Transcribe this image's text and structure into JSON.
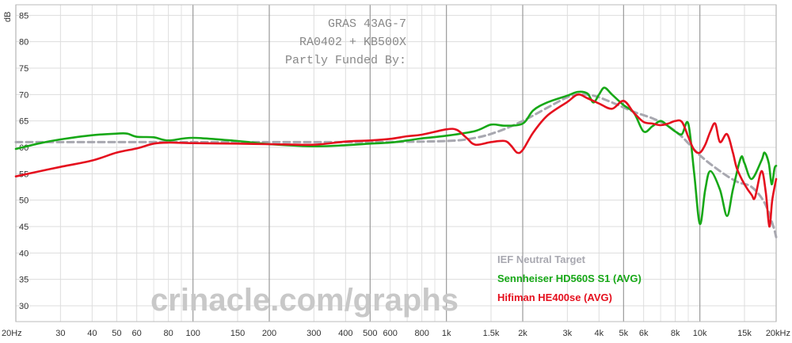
{
  "chart_data": {
    "type": "line",
    "title_lines": [
      "GRAS 43AG-7",
      "RA0402 + KB500X",
      "Partly Funded By:"
    ],
    "watermark": "crinacle.com/graphs",
    "ylabel": "dB",
    "ylim": [
      27,
      87
    ],
    "xlim": [
      20,
      20000
    ],
    "x_scale": "log",
    "grid": true,
    "legend_position": "bottom-right",
    "y_ticks": [
      {
        "value": 30,
        "label": "30"
      },
      {
        "value": 35,
        "label": "35"
      },
      {
        "value": 40,
        "label": "40"
      },
      {
        "value": 45,
        "label": "45"
      },
      {
        "value": 50,
        "label": "50"
      },
      {
        "value": 55,
        "label": "55"
      },
      {
        "value": 60,
        "label": "60"
      },
      {
        "value": 65,
        "label": "65"
      },
      {
        "value": 70,
        "label": "70"
      },
      {
        "value": 75,
        "label": "75"
      },
      {
        "value": 80,
        "label": "80"
      },
      {
        "value": 85,
        "label": "85"
      }
    ],
    "x_ticks": [
      {
        "value": 20,
        "label": "20Hz",
        "major": true
      },
      {
        "value": 30,
        "label": "30"
      },
      {
        "value": 40,
        "label": "40"
      },
      {
        "value": 50,
        "label": "50"
      },
      {
        "value": 60,
        "label": "60"
      },
      {
        "value": 80,
        "label": "80"
      },
      {
        "value": 100,
        "label": "100",
        "major": true
      },
      {
        "value": 150,
        "label": "150"
      },
      {
        "value": 200,
        "label": "200",
        "major": true
      },
      {
        "value": 300,
        "label": "300"
      },
      {
        "value": 400,
        "label": "400"
      },
      {
        "value": 500,
        "label": "500",
        "major": true
      },
      {
        "value": 600,
        "label": "600"
      },
      {
        "value": 800,
        "label": "800"
      },
      {
        "value": 1000,
        "label": "1k",
        "major": true
      },
      {
        "value": 1500,
        "label": "1.5k"
      },
      {
        "value": 2000,
        "label": "2k",
        "major": true
      },
      {
        "value": 3000,
        "label": "3k"
      },
      {
        "value": 4000,
        "label": "4k"
      },
      {
        "value": 5000,
        "label": "5k",
        "major": true
      },
      {
        "value": 6000,
        "label": "6k"
      },
      {
        "value": 8000,
        "label": "8k"
      },
      {
        "value": 10000,
        "label": "10k",
        "major": true
      },
      {
        "value": 15000,
        "label": "15k"
      },
      {
        "value": 20000,
        "label": "20kHz",
        "major": true
      }
    ],
    "minor_grid_x": [
      70,
      90,
      700,
      900,
      7000,
      9000
    ],
    "series": [
      {
        "name": "IEF Neutral Target",
        "color": "#a8a8b0",
        "dashed": true,
        "points": [
          [
            20,
            61.0
          ],
          [
            40,
            61.0
          ],
          [
            100,
            61.0
          ],
          [
            200,
            61.0
          ],
          [
            500,
            61.0
          ],
          [
            1000,
            61.2
          ],
          [
            1300,
            61.8
          ],
          [
            1600,
            63.0
          ],
          [
            2000,
            65.0
          ],
          [
            2500,
            67.5
          ],
          [
            3000,
            69.5
          ],
          [
            3300,
            70.0
          ],
          [
            3800,
            69.8
          ],
          [
            4500,
            68.5
          ],
          [
            5500,
            66.7
          ],
          [
            6500,
            65.5
          ],
          [
            7500,
            64.0
          ],
          [
            8500,
            62.0
          ],
          [
            10000,
            58.5
          ],
          [
            12000,
            55.5
          ],
          [
            14000,
            53.5
          ],
          [
            16000,
            52.5
          ],
          [
            18000,
            49.5
          ],
          [
            19500,
            45.0
          ],
          [
            20000,
            43.0
          ]
        ]
      },
      {
        "name": "Sennheiser HD560S S1 (AVG)",
        "color": "#17a817",
        "dashed": false,
        "points": [
          [
            20,
            59.7
          ],
          [
            25,
            60.8
          ],
          [
            30,
            61.5
          ],
          [
            40,
            62.3
          ],
          [
            50,
            62.6
          ],
          [
            55,
            62.6
          ],
          [
            60,
            62.0
          ],
          [
            70,
            61.9
          ],
          [
            80,
            61.3
          ],
          [
            100,
            61.8
          ],
          [
            150,
            61.2
          ],
          [
            200,
            60.6
          ],
          [
            300,
            60.2
          ],
          [
            400,
            60.4
          ],
          [
            500,
            60.7
          ],
          [
            600,
            60.9
          ],
          [
            700,
            61.3
          ],
          [
            800,
            61.7
          ],
          [
            1000,
            62.2
          ],
          [
            1300,
            63.1
          ],
          [
            1500,
            64.3
          ],
          [
            1700,
            64.1
          ],
          [
            2000,
            64.5
          ],
          [
            2200,
            67.0
          ],
          [
            2500,
            68.5
          ],
          [
            3000,
            69.8
          ],
          [
            3300,
            70.5
          ],
          [
            3600,
            70.2
          ],
          [
            3800,
            68.5
          ],
          [
            4000,
            70.0
          ],
          [
            4200,
            71.3
          ],
          [
            4500,
            70.0
          ],
          [
            5000,
            68.0
          ],
          [
            5500,
            66.5
          ],
          [
            6000,
            63.0
          ],
          [
            6500,
            64.0
          ],
          [
            7000,
            65.0
          ],
          [
            7500,
            64.0
          ],
          [
            8000,
            63.0
          ],
          [
            8500,
            62.5
          ],
          [
            9000,
            64.5
          ],
          [
            9500,
            55.0
          ],
          [
            10000,
            45.5
          ],
          [
            10500,
            52.0
          ],
          [
            11000,
            55.5
          ],
          [
            12000,
            52.0
          ],
          [
            12800,
            47.0
          ],
          [
            13500,
            52.0
          ],
          [
            14500,
            58.0
          ],
          [
            15000,
            57.0
          ],
          [
            16000,
            54.0
          ],
          [
            17500,
            57.5
          ],
          [
            18000,
            59.0
          ],
          [
            18700,
            57.0
          ],
          [
            19200,
            53.0
          ],
          [
            19700,
            56.0
          ],
          [
            20000,
            56.5
          ]
        ]
      },
      {
        "name": "Hifiman HE400se (AVG)",
        "color": "#e5101e",
        "dashed": false,
        "points": [
          [
            20,
            54.5
          ],
          [
            25,
            55.5
          ],
          [
            30,
            56.3
          ],
          [
            40,
            57.5
          ],
          [
            50,
            59.0
          ],
          [
            60,
            59.8
          ],
          [
            70,
            60.7
          ],
          [
            80,
            60.9
          ],
          [
            100,
            60.8
          ],
          [
            150,
            60.7
          ],
          [
            200,
            60.6
          ],
          [
            300,
            60.5
          ],
          [
            400,
            61.1
          ],
          [
            500,
            61.3
          ],
          [
            600,
            61.6
          ],
          [
            700,
            62.1
          ],
          [
            800,
            62.4
          ],
          [
            1000,
            63.4
          ],
          [
            1100,
            63.3
          ],
          [
            1200,
            61.8
          ],
          [
            1300,
            60.5
          ],
          [
            1500,
            61.0
          ],
          [
            1700,
            61.2
          ],
          [
            1800,
            60.3
          ],
          [
            1900,
            59.0
          ],
          [
            2000,
            59.5
          ],
          [
            2200,
            62.8
          ],
          [
            2500,
            66.0
          ],
          [
            3000,
            68.6
          ],
          [
            3300,
            70.0
          ],
          [
            3600,
            69.3
          ],
          [
            4000,
            68.3
          ],
          [
            4500,
            67.3
          ],
          [
            5000,
            68.8
          ],
          [
            5500,
            66.5
          ],
          [
            6000,
            64.8
          ],
          [
            6500,
            64.5
          ],
          [
            7000,
            64.2
          ],
          [
            7500,
            64.5
          ],
          [
            8000,
            65.0
          ],
          [
            8500,
            64.8
          ],
          [
            9000,
            62.0
          ],
          [
            9500,
            59.5
          ],
          [
            10000,
            59.0
          ],
          [
            10500,
            60.5
          ],
          [
            11000,
            63.0
          ],
          [
            11500,
            64.5
          ],
          [
            12000,
            61.0
          ],
          [
            12800,
            62.5
          ],
          [
            13500,
            59.0
          ],
          [
            14000,
            56.0
          ],
          [
            15000,
            53.0
          ],
          [
            16000,
            51.0
          ],
          [
            16500,
            50.5
          ],
          [
            17500,
            55.5
          ],
          [
            18200,
            51.5
          ],
          [
            18800,
            45.0
          ],
          [
            19300,
            50.0
          ],
          [
            20000,
            54.0
          ]
        ]
      }
    ]
  }
}
